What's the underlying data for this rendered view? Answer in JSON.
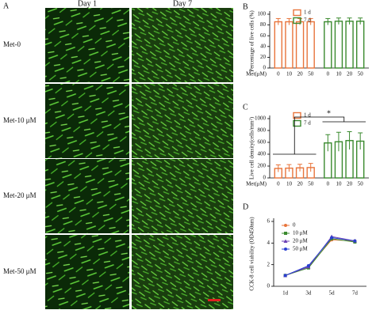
{
  "panel_a": {
    "label": "A",
    "columns": [
      "Day 1",
      "Day 7"
    ],
    "rows": [
      "Met-0",
      "Met-10 μM",
      "Met-20 μM",
      "Met-50 μM"
    ]
  },
  "chart_data": [
    {
      "type": "bar",
      "label": "B",
      "ylabel": "Percentage of live cells (%)",
      "xlabel": "Met(μM)",
      "categories": [
        "0",
        "10",
        "20",
        "50"
      ],
      "series": [
        {
          "name": "1 d",
          "color": "#e8743b",
          "values": [
            86,
            86,
            86,
            86
          ],
          "errors": [
            6,
            6,
            6,
            6
          ]
        },
        {
          "name": "7 d",
          "color": "#3a8a2e",
          "values": [
            86,
            87,
            87,
            87
          ],
          "errors": [
            6,
            6,
            6,
            6
          ]
        }
      ],
      "ylim": [
        0,
        100
      ],
      "yticks": [
        0,
        20,
        40,
        60,
        80,
        100
      ]
    },
    {
      "type": "bar",
      "label": "C",
      "ylabel": "Live cell density(cells/mm²)",
      "xlabel": "Met(μM)",
      "categories": [
        "0",
        "10",
        "20",
        "50"
      ],
      "series": [
        {
          "name": "1 d",
          "color": "#e8743b",
          "values": [
            160,
            165,
            170,
            175
          ],
          "errors": [
            60,
            60,
            60,
            70
          ]
        },
        {
          "name": "7 d",
          "color": "#3a8a2e",
          "values": [
            590,
            610,
            630,
            620
          ],
          "errors": [
            140,
            160,
            150,
            140
          ]
        }
      ],
      "ylim": [
        0,
        1000
      ],
      "yticks": [
        0,
        200,
        400,
        600,
        800,
        1000
      ],
      "annotation": "*"
    },
    {
      "type": "line",
      "label": "D",
      "ylabel": "CCK-8 cell viability (OD450nm)",
      "categories": [
        "1d",
        "3d",
        "5d",
        "7d"
      ],
      "series": [
        {
          "name": "0",
          "color": "#e8743b",
          "values": [
            1.0,
            1.8,
            4.3,
            4.2
          ]
        },
        {
          "name": "10 μM",
          "color": "#3a8a2e",
          "values": [
            1.0,
            1.7,
            4.4,
            4.1
          ]
        },
        {
          "name": "20 μM",
          "color": "#6a3fb5",
          "values": [
            1.0,
            1.8,
            4.6,
            4.2
          ]
        },
        {
          "name": "50 μM",
          "color": "#2a3fd0",
          "values": [
            1.0,
            1.9,
            4.5,
            4.2
          ]
        }
      ],
      "ylim": [
        0,
        6
      ],
      "yticks": [
        0,
        2,
        4,
        6
      ]
    }
  ]
}
